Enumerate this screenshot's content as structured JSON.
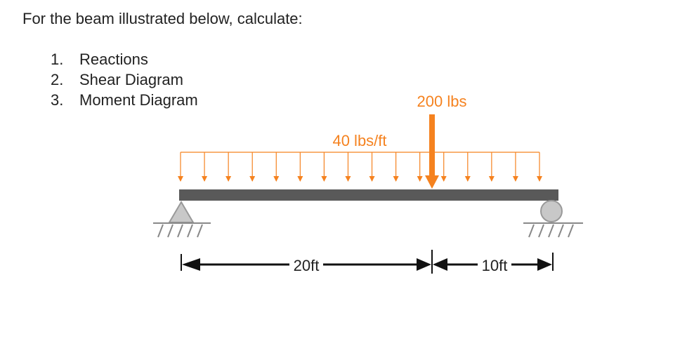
{
  "header": {
    "title": "For the beam illustrated below, calculate:"
  },
  "tasks": [
    {
      "number": "1.",
      "text": "Reactions"
    },
    {
      "number": "2.",
      "text": "Shear Diagram"
    },
    {
      "number": "3.",
      "text": "Moment Diagram"
    }
  ],
  "diagram": {
    "point_load": "200 lbs",
    "distributed_load": "40 lbs/ft",
    "dimensions": [
      "20ft",
      "10ft"
    ]
  }
}
